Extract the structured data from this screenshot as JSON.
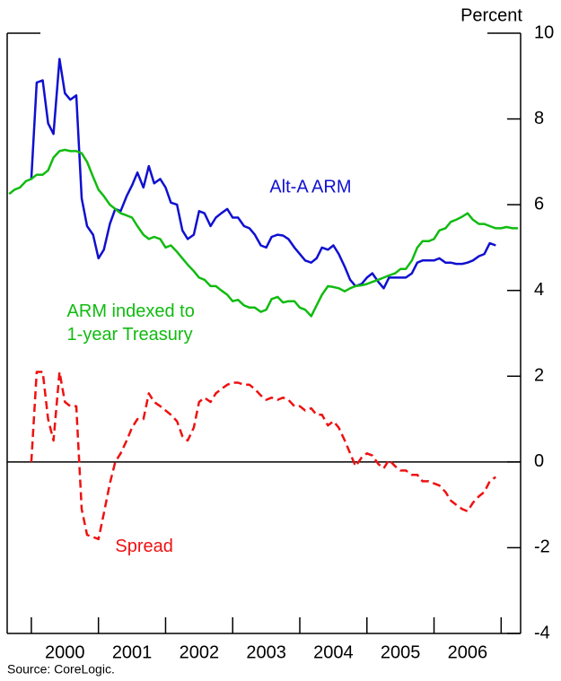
{
  "chart_data": {
    "type": "line",
    "y_axis_label": "Percent",
    "source": "Source: CoreLogic.",
    "annotations": [
      {
        "text": "Alt-A ARM",
        "x": 2003.55,
        "y": 6.4,
        "color": "#1010d0"
      },
      {
        "text": "ARM indexed to",
        "x": 2000.53,
        "y": 3.5,
        "color": "#11bb11"
      },
      {
        "text": "1-year Treasury",
        "x": 2000.53,
        "y": 2.95,
        "color": "#11bb11"
      },
      {
        "text": "Spread",
        "x": 2001.25,
        "y": -1.98,
        "color": "#ee1111"
      }
    ],
    "x": [
      1999.67,
      1999.75,
      1999.83,
      1999.92,
      2000.0,
      2000.08,
      2000.17,
      2000.25,
      2000.33,
      2000.42,
      2000.5,
      2000.58,
      2000.67,
      2000.75,
      2000.83,
      2000.92,
      2001.0,
      2001.08,
      2001.17,
      2001.25,
      2001.33,
      2001.42,
      2001.5,
      2001.58,
      2001.67,
      2001.75,
      2001.83,
      2001.92,
      2002.0,
      2002.08,
      2002.17,
      2002.25,
      2002.33,
      2002.42,
      2002.5,
      2002.58,
      2002.67,
      2002.75,
      2002.83,
      2002.92,
      2003.0,
      2003.08,
      2003.17,
      2003.25,
      2003.33,
      2003.42,
      2003.5,
      2003.58,
      2003.67,
      2003.75,
      2003.83,
      2003.92,
      2004.0,
      2004.08,
      2004.17,
      2004.25,
      2004.33,
      2004.42,
      2004.5,
      2004.58,
      2004.67,
      2004.75,
      2004.83,
      2004.92,
      2005.0,
      2005.08,
      2005.17,
      2005.25,
      2005.33,
      2005.42,
      2005.5,
      2005.58,
      2005.67,
      2005.75,
      2005.83,
      2005.92,
      2006.0,
      2006.08,
      2006.17,
      2006.25,
      2006.33,
      2006.42,
      2006.5,
      2006.58,
      2006.67,
      2006.75,
      2006.83,
      2006.92,
      2007.0,
      2007.08,
      2007.17,
      2007.25
    ],
    "series": [
      {
        "name": "Alt-A ARM",
        "color": "#1010d0",
        "dashed": false,
        "values": [
          null,
          null,
          null,
          null,
          6.6,
          8.85,
          8.9,
          7.9,
          7.65,
          9.4,
          8.6,
          8.45,
          8.55,
          6.15,
          5.5,
          5.3,
          4.75,
          4.95,
          5.55,
          5.9,
          5.85,
          6.2,
          6.45,
          6.75,
          6.4,
          6.9,
          6.5,
          6.6,
          6.4,
          6.05,
          6.0,
          5.4,
          5.2,
          5.3,
          5.85,
          5.8,
          5.5,
          5.7,
          5.8,
          5.9,
          5.7,
          5.7,
          5.5,
          5.45,
          5.3,
          5.05,
          5.0,
          5.25,
          5.3,
          5.28,
          5.2,
          5.0,
          4.85,
          4.7,
          4.65,
          4.75,
          5.0,
          4.95,
          5.05,
          4.85,
          4.55,
          4.25,
          4.1,
          4.15,
          4.3,
          4.4,
          4.2,
          4.05,
          4.3,
          4.3,
          4.3,
          4.3,
          4.4,
          4.65,
          4.7,
          4.7,
          4.7,
          4.75,
          4.65,
          4.65,
          4.62,
          4.62,
          4.65,
          4.7,
          4.8,
          4.85,
          5.1,
          5.05,
          null,
          null,
          null,
          null
        ]
      },
      {
        "name": "ARM indexed to 1-year Treasury",
        "color": "#11bb11",
        "dashed": false,
        "values": [
          6.25,
          6.35,
          6.4,
          6.55,
          6.6,
          6.7,
          6.7,
          6.8,
          7.1,
          7.25,
          7.28,
          7.25,
          7.25,
          7.2,
          7.0,
          6.65,
          6.35,
          6.2,
          6.0,
          5.9,
          5.8,
          5.75,
          5.7,
          5.5,
          5.3,
          5.2,
          5.25,
          5.2,
          5.0,
          5.05,
          4.9,
          4.75,
          4.6,
          4.45,
          4.3,
          4.25,
          4.1,
          4.1,
          4.0,
          3.9,
          3.75,
          3.78,
          3.65,
          3.6,
          3.6,
          3.5,
          3.55,
          3.8,
          3.85,
          3.72,
          3.75,
          3.75,
          3.6,
          3.55,
          3.4,
          3.65,
          3.9,
          4.1,
          4.08,
          4.05,
          3.98,
          4.05,
          4.1,
          4.12,
          4.15,
          4.2,
          4.25,
          4.3,
          4.35,
          4.4,
          4.5,
          4.5,
          4.7,
          5.0,
          5.15,
          5.15,
          5.2,
          5.4,
          5.45,
          5.6,
          5.65,
          5.72,
          5.8,
          5.65,
          5.55,
          5.55,
          5.5,
          5.45,
          5.45,
          5.48,
          5.45,
          5.45
        ]
      },
      {
        "name": "Spread",
        "color": "#ee1111",
        "dashed": true,
        "values": [
          null,
          null,
          null,
          null,
          0,
          2.1,
          2.1,
          1.0,
          0.5,
          2.1,
          1.4,
          1.3,
          1.3,
          -1.1,
          -1.7,
          -1.75,
          -1.8,
          -1.2,
          -0.5,
          0.0,
          0.2,
          0.5,
          0.8,
          1.0,
          1.0,
          1.6,
          1.4,
          1.3,
          1.2,
          1.1,
          0.95,
          0.6,
          0.5,
          0.8,
          1.4,
          1.5,
          1.4,
          1.6,
          1.7,
          1.8,
          1.85,
          1.85,
          1.8,
          1.8,
          1.7,
          1.55,
          1.45,
          1.5,
          1.45,
          1.5,
          1.45,
          1.3,
          1.3,
          1.2,
          1.25,
          1.1,
          1.1,
          0.85,
          0.95,
          0.8,
          0.5,
          0.2,
          -0.1,
          0.1,
          0.2,
          0.15,
          -0.05,
          -0.15,
          0.05,
          -0.1,
          -0.2,
          -0.2,
          -0.3,
          -0.3,
          -0.45,
          -0.45,
          -0.5,
          -0.55,
          -0.7,
          -0.9,
          -1.0,
          -1.1,
          -1.15,
          -0.95,
          -0.8,
          -0.7,
          -0.45,
          -0.35,
          null,
          null,
          null,
          null
        ]
      }
    ],
    "xlim": [
      1999.64,
      2007.29
    ],
    "xticks": [
      2000,
      2001,
      2002,
      2003,
      2004,
      2005,
      2006,
      2007
    ],
    "xtick_labels": [
      {
        "value": 2000.5,
        "label": "2000"
      },
      {
        "value": 2001.5,
        "label": "2001"
      },
      {
        "value": 2002.5,
        "label": "2002"
      },
      {
        "value": 2003.5,
        "label": "2003"
      },
      {
        "value": 2004.5,
        "label": "2004"
      },
      {
        "value": 2005.5,
        "label": "2005"
      },
      {
        "value": 2006.5,
        "label": "2006"
      }
    ],
    "ylim": [
      -4,
      10
    ],
    "yticks": [
      -4,
      -2,
      0,
      2,
      4,
      6,
      8,
      10
    ],
    "zero_line": true,
    "y_axis_side": "right"
  }
}
